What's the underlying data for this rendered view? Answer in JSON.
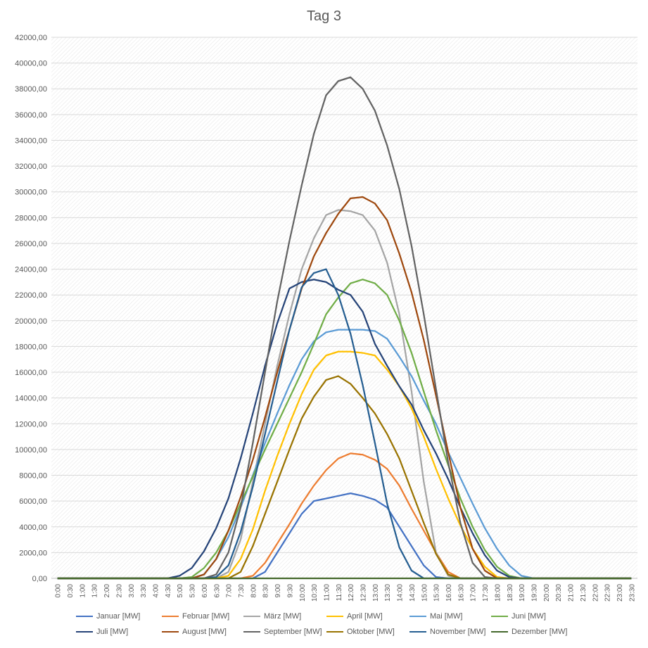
{
  "chart_data": {
    "type": "line",
    "title": "Tag 3",
    "xlabel": "",
    "ylabel": "",
    "ylim": [
      0,
      42000
    ],
    "yticks": [
      "0,00",
      "2000,00",
      "4000,00",
      "6000,00",
      "8000,00",
      "10000,00",
      "12000,00",
      "14000,00",
      "16000,00",
      "18000,00",
      "20000,00",
      "22000,00",
      "24000,00",
      "26000,00",
      "28000,00",
      "30000,00",
      "32000,00",
      "34000,00",
      "36000,00",
      "38000,00",
      "40000,00",
      "42000,00"
    ],
    "x": [
      "0:00",
      "0:30",
      "1:00",
      "1:30",
      "2:00",
      "2:30",
      "3:00",
      "3:30",
      "4:00",
      "4:30",
      "5:00",
      "5:30",
      "6:00",
      "6:30",
      "7:00",
      "7:30",
      "8:00",
      "8:30",
      "9:00",
      "9:30",
      "10:00",
      "10:30",
      "11:00",
      "11:30",
      "12:00",
      "12:30",
      "13:00",
      "13:30",
      "14:00",
      "14:30",
      "15:00",
      "15:30",
      "16:00",
      "16:30",
      "17:00",
      "17:30",
      "18:00",
      "18:30",
      "19:00",
      "19:30",
      "20:00",
      "20:30",
      "21:00",
      "21:30",
      "22:00",
      "22:30",
      "23:00",
      "23:30"
    ],
    "grid": true,
    "legend_position": "bottom",
    "series": [
      {
        "name": "Januar [MW]",
        "color": "#4472C4",
        "values": [
          0,
          0,
          0,
          0,
          0,
          0,
          0,
          0,
          0,
          0,
          0,
          0,
          0,
          0,
          0,
          0,
          0,
          500,
          2000,
          3500,
          5000,
          6000,
          6200,
          6400,
          6600,
          6400,
          6100,
          5500,
          4000,
          2500,
          1000,
          100,
          0,
          0,
          0,
          0,
          0,
          0,
          0,
          0,
          0,
          0,
          0,
          0,
          0,
          0,
          0,
          0
        ]
      },
      {
        "name": "Februar [MW]",
        "color": "#ED7D31",
        "values": [
          0,
          0,
          0,
          0,
          0,
          0,
          0,
          0,
          0,
          0,
          0,
          0,
          0,
          0,
          0,
          0,
          200,
          1200,
          2700,
          4200,
          5800,
          7200,
          8400,
          9300,
          9700,
          9600,
          9200,
          8500,
          7200,
          5400,
          3700,
          2000,
          500,
          0,
          0,
          0,
          0,
          0,
          0,
          0,
          0,
          0,
          0,
          0,
          0,
          0,
          0,
          0
        ]
      },
      {
        "name": "März [MW]",
        "color": "#A5A5A5",
        "values": [
          0,
          0,
          0,
          0,
          0,
          0,
          0,
          0,
          0,
          0,
          0,
          0,
          0,
          0,
          500,
          3000,
          7500,
          12000,
          16500,
          20500,
          24000,
          26400,
          28200,
          28600,
          28500,
          28200,
          27000,
          24500,
          20500,
          14500,
          7500,
          2000,
          200,
          0,
          0,
          0,
          0,
          0,
          0,
          0,
          0,
          0,
          0,
          0,
          0,
          0,
          0,
          0
        ]
      },
      {
        "name": "April [MW]",
        "color": "#FFC000",
        "values": [
          0,
          0,
          0,
          0,
          0,
          0,
          0,
          0,
          0,
          0,
          0,
          0,
          0,
          0,
          200,
          1500,
          3800,
          6800,
          9500,
          12000,
          14300,
          16200,
          17300,
          17600,
          17600,
          17500,
          17300,
          16200,
          14900,
          13200,
          11000,
          8500,
          6200,
          4100,
          2300,
          900,
          100,
          0,
          0,
          0,
          0,
          0,
          0,
          0,
          0,
          0,
          0,
          0
        ]
      },
      {
        "name": "Mai [MW]",
        "color": "#5B9BD5",
        "values": [
          0,
          0,
          0,
          0,
          0,
          0,
          0,
          0,
          0,
          0,
          0,
          0,
          300,
          1500,
          3200,
          5500,
          8000,
          10500,
          12800,
          15000,
          17000,
          18400,
          19100,
          19300,
          19300,
          19300,
          19200,
          18600,
          17200,
          15700,
          13800,
          12000,
          9800,
          7800,
          5800,
          3900,
          2300,
          1000,
          200,
          0,
          0,
          0,
          0,
          0,
          0,
          0,
          0,
          0
        ]
      },
      {
        "name": "Juni [MW]",
        "color": "#70AD47",
        "values": [
          0,
          0,
          0,
          0,
          0,
          0,
          0,
          0,
          0,
          0,
          0,
          100,
          800,
          2000,
          3700,
          5800,
          7900,
          10000,
          12000,
          14000,
          16000,
          18200,
          20500,
          21800,
          22900,
          23200,
          22900,
          22000,
          20000,
          17500,
          14500,
          11500,
          8800,
          6200,
          4000,
          2200,
          900,
          200,
          0,
          0,
          0,
          0,
          0,
          0,
          0,
          0,
          0,
          0
        ]
      },
      {
        "name": "Juli [MW]",
        "color": "#264478",
        "values": [
          0,
          0,
          0,
          0,
          0,
          0,
          0,
          0,
          0,
          0,
          200,
          800,
          2100,
          3900,
          6200,
          9300,
          12800,
          16500,
          19800,
          22500,
          23000,
          23200,
          23000,
          22400,
          22000,
          20700,
          18200,
          16500,
          14900,
          13500,
          11500,
          9700,
          7700,
          5500,
          3500,
          1800,
          600,
          100,
          0,
          0,
          0,
          0,
          0,
          0,
          0,
          0,
          0,
          0
        ]
      },
      {
        "name": "August [MW]",
        "color": "#9E480E",
        "values": [
          0,
          0,
          0,
          0,
          0,
          0,
          0,
          0,
          0,
          0,
          0,
          0,
          300,
          1500,
          3700,
          6300,
          9200,
          12500,
          16000,
          19300,
          22500,
          25000,
          26800,
          28300,
          29500,
          29600,
          29100,
          27800,
          25200,
          22200,
          18500,
          14200,
          9800,
          5500,
          2300,
          600,
          0,
          0,
          0,
          0,
          0,
          0,
          0,
          0,
          0,
          0,
          0,
          0
        ]
      },
      {
        "name": "September [MW]",
        "color": "#636363",
        "values": [
          0,
          0,
          0,
          0,
          0,
          0,
          0,
          0,
          0,
          0,
          0,
          0,
          0,
          300,
          2000,
          5500,
          10500,
          16000,
          21500,
          26200,
          30500,
          34500,
          37500,
          38600,
          38900,
          38000,
          36300,
          33600,
          30200,
          25800,
          20500,
          14700,
          9000,
          4300,
          1200,
          100,
          0,
          0,
          0,
          0,
          0,
          0,
          0,
          0,
          0,
          0,
          0,
          0
        ]
      },
      {
        "name": "Oktober [MW]",
        "color": "#997300",
        "values": [
          0,
          0,
          0,
          0,
          0,
          0,
          0,
          0,
          0,
          0,
          0,
          0,
          0,
          0,
          0,
          500,
          2500,
          5000,
          7500,
          10000,
          12400,
          14100,
          15400,
          15700,
          15100,
          14000,
          12800,
          11200,
          9300,
          6800,
          4300,
          1900,
          300,
          0,
          0,
          0,
          0,
          0,
          0,
          0,
          0,
          0,
          0,
          0,
          0,
          0,
          0,
          0
        ]
      },
      {
        "name": "November [MW]",
        "color": "#255E91",
        "values": [
          0,
          0,
          0,
          0,
          0,
          0,
          0,
          0,
          0,
          0,
          0,
          0,
          0,
          100,
          1000,
          3600,
          7100,
          11200,
          15300,
          19300,
          22600,
          23700,
          24000,
          22000,
          19000,
          15000,
          10500,
          5800,
          2400,
          600,
          0,
          0,
          0,
          0,
          0,
          0,
          0,
          0,
          0,
          0,
          0,
          0,
          0,
          0,
          0,
          0,
          0,
          0
        ]
      },
      {
        "name": "Dezember [MW]",
        "color": "#43682B",
        "values": [
          0,
          0,
          0,
          0,
          0,
          0,
          0,
          0,
          0,
          0,
          0,
          0,
          0,
          0,
          0,
          0,
          0,
          0,
          0,
          0,
          0,
          0,
          0,
          0,
          0,
          0,
          0,
          0,
          0,
          0,
          0,
          0,
          0,
          0,
          0,
          0,
          0,
          0,
          0,
          0,
          0,
          0,
          0,
          0,
          0,
          0,
          0,
          0
        ]
      }
    ]
  }
}
